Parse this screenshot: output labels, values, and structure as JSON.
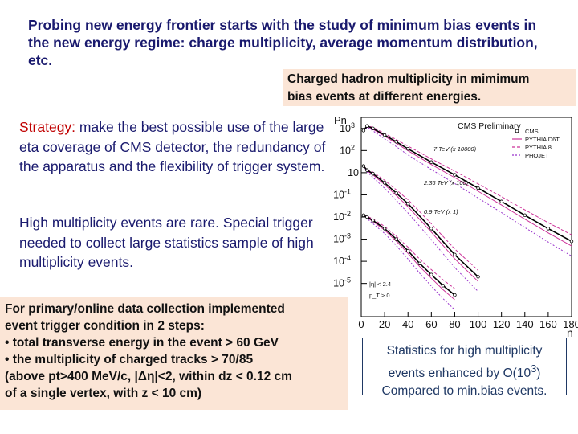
{
  "intro": {
    "text": "Probing new energy frontier starts with the study of minimum bias events in the new  energy regime: charge multiplicity, average momentum distribution,  etc."
  },
  "chart_caption": {
    "line1": "Charged hadron multiplicity in mimimum",
    "line2": " bias events at different energies."
  },
  "strategy": {
    "lead": "Strategy:",
    "text": " make the best possible use of the large eta coverage of  CMS detector, the redundancy of the apparatus and the flexibility of  trigger system."
  },
  "high_multiplicity": {
    "text": "High multiplicity events are rare. Special trigger needed to collect  large statistics sample of high multiplicity events."
  },
  "trigger_box": {
    "lines": [
      "For primary/online data collection implemented",
      "event trigger condition in 2 steps:",
      "• total transverse energy in the event > 60 GeV",
      "• the multiplicity of charged tracks > 70/85",
      "(above pt>400 MeV/c, |Δη|<2, within dz < 0.12 cm",
      "of a single vertex, with z < 10 cm)"
    ]
  },
  "stats_box": {
    "line1": "Statistics for high multiplicity",
    "line2_pre": "events enhanced by O(10",
    "line2_sup": "3",
    "line2_post": ")",
    "line3": "Compared to min.bias events."
  },
  "chart_data": {
    "type": "line",
    "title": "CMS Preliminary",
    "xlabel": "n",
    "ylabel": "Pn",
    "xlim": [
      0,
      180
    ],
    "ylim_log10": [
      -5.5,
      3.5
    ],
    "log_y": true,
    "x_ticks": [
      "0",
      "20",
      "40",
      "60",
      "80",
      "100",
      "120",
      "140",
      "160",
      "180"
    ],
    "y_ticks": [
      "10^3",
      "10^2",
      "10",
      "10^-1",
      "10^-2",
      "10^-3",
      "10^-4",
      "10^-5"
    ],
    "legend": [
      "CMS",
      "PYTHIA D6T",
      "PYTHIA 8",
      "PHOJET"
    ],
    "legend_colors": [
      "#000000",
      "#cc3399",
      "#cc3399",
      "#9933cc"
    ],
    "cuts": [
      "|η| < 2.4",
      "p_T > 0"
    ],
    "series": [
      {
        "name": "7 TeV (x 10000)",
        "x": [
          2,
          5,
          10,
          20,
          30,
          40,
          60,
          80,
          100,
          120,
          140,
          160,
          180
        ],
        "y": [
          800,
          1300,
          1000,
          500,
          250,
          120,
          30,
          8,
          2,
          0.5,
          0.12,
          0.03,
          0.008
        ]
      },
      {
        "name": "2.36 TeV (x 100)",
        "x": [
          2,
          5,
          10,
          20,
          30,
          40,
          60,
          80,
          100
        ],
        "y": [
          20,
          13,
          9,
          3.5,
          1.2,
          0.4,
          0.03,
          0.002,
          0.0002
        ]
      },
      {
        "name": "0.9 TeV (x 1)",
        "x": [
          2,
          5,
          10,
          20,
          30,
          40,
          50,
          60,
          70,
          80
        ],
        "y": [
          0.12,
          0.1,
          0.07,
          0.03,
          0.01,
          0.003,
          0.0008,
          0.00025,
          8e-05,
          3e-05
        ]
      }
    ]
  }
}
